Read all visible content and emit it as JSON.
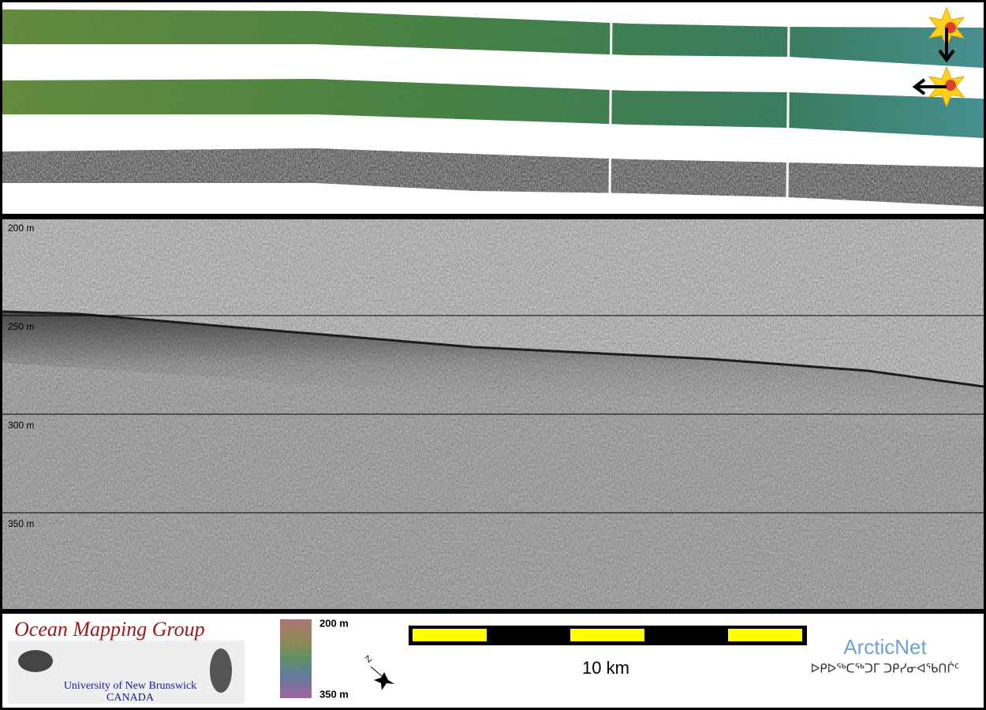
{
  "echogram": {
    "depth_labels": [
      "200 m",
      "250 m",
      "300 m",
      "350 m"
    ]
  },
  "footer": {
    "logo": {
      "title": "Ocean Mapping Group",
      "university": "University of New Brunswick",
      "country": "CANADA"
    },
    "colorbar": {
      "top_label": "200 m",
      "bottom_label": "350 m"
    },
    "scale_bar": {
      "label": "10 km"
    },
    "partner": {
      "name": "ArcticNet",
      "syllabics": "ᐅᑭᐅᖅᑕᖅᑐᒥ ᑐᑭᓯᓂᐊᖃᑎᒌᑦ"
    }
  }
}
